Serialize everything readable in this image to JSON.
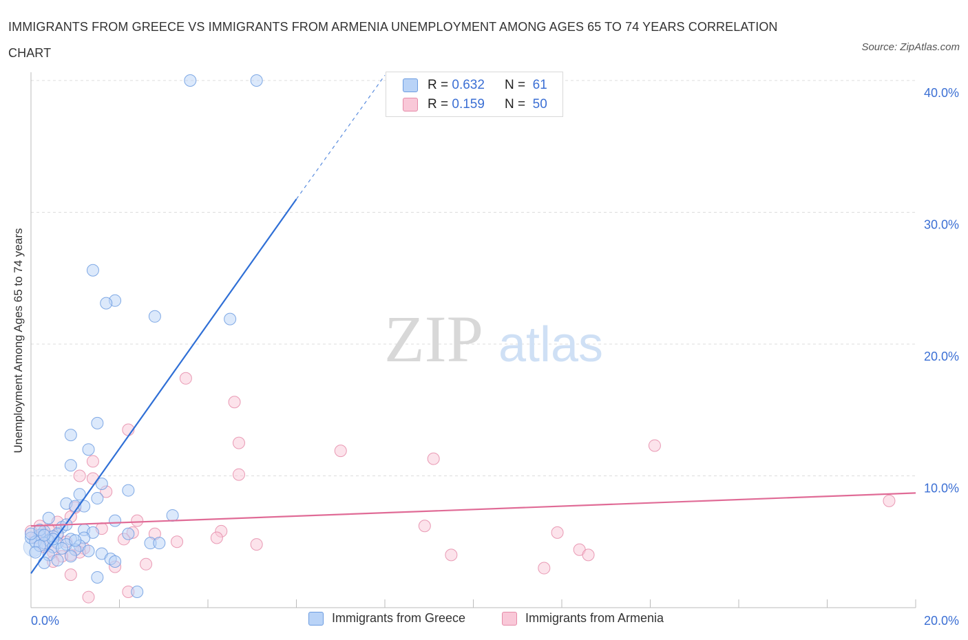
{
  "title": "IMMIGRANTS FROM GREECE VS IMMIGRANTS FROM ARMENIA UNEMPLOYMENT AMONG AGES 65 TO 74 YEARS CORRELATION CHART",
  "source": "Source: ZipAtlas.com",
  "watermark": {
    "zip": "ZIP",
    "atlas": "atlas"
  },
  "legend": {
    "rows": [
      {
        "r_label": "R =",
        "r_value": "0.632",
        "n_label": "N =",
        "n_value": "61"
      },
      {
        "r_label": "R =",
        "r_value": "0.159",
        "n_label": "N =",
        "n_value": "50"
      }
    ],
    "bottom": [
      "Immigrants from Greece",
      "Immigrants from Armenia"
    ]
  },
  "chart_data": {
    "type": "scatter",
    "title": "IMMIGRANTS FROM GREECE VS IMMIGRANTS FROM ARMENIA UNEMPLOYMENT AMONG AGES 65 TO 74 YEARS CORRELATION CHART",
    "xlabel": "",
    "ylabel": "Unemployment Among Ages 65 to 74 years",
    "xlim": [
      0,
      20
    ],
    "ylim": [
      0,
      40
    ],
    "x_tick_labels": [
      "0.0%",
      "20.0%"
    ],
    "y_tick_labels": [
      "10.0%",
      "20.0%",
      "30.0%",
      "40.0%"
    ],
    "y_ticks": [
      10,
      20,
      30,
      40
    ],
    "grid": true,
    "colors": {
      "greece": "#6b9be0",
      "greece_fill": "#b9d3f7",
      "greece_line": "#2f6fd6",
      "armenia": "#e58aa8",
      "armenia_fill": "#f9c8d8",
      "armenia_line": "#e06b96",
      "tick": "#3b6fd4"
    },
    "series": [
      {
        "name": "Immigrants from Greece",
        "R": 0.632,
        "N": 61,
        "trend": {
          "x0": 0.0,
          "y0": 2.6,
          "x1": 6.0,
          "y1": 31.0,
          "dash_to_x": 8.0,
          "dash_to_y": 40.4
        },
        "points": [
          [
            3.6,
            40.0
          ],
          [
            5.1,
            40.0
          ],
          [
            1.4,
            25.6
          ],
          [
            1.9,
            23.3
          ],
          [
            1.7,
            23.1
          ],
          [
            2.8,
            22.1
          ],
          [
            4.5,
            21.9
          ],
          [
            1.5,
            14.0
          ],
          [
            0.9,
            13.1
          ],
          [
            1.3,
            12.0
          ],
          [
            0.9,
            10.8
          ],
          [
            1.6,
            9.4
          ],
          [
            2.2,
            8.9
          ],
          [
            1.1,
            8.6
          ],
          [
            1.5,
            8.3
          ],
          [
            0.8,
            7.9
          ],
          [
            1.0,
            7.7
          ],
          [
            1.2,
            7.7
          ],
          [
            3.2,
            7.0
          ],
          [
            0.4,
            6.8
          ],
          [
            1.9,
            6.6
          ],
          [
            0.7,
            6.1
          ],
          [
            1.2,
            5.9
          ],
          [
            0.3,
            5.8
          ],
          [
            1.4,
            5.7
          ],
          [
            0.6,
            5.6
          ],
          [
            2.2,
            5.6
          ],
          [
            0.2,
            5.5
          ],
          [
            0.5,
            5.4
          ],
          [
            0.0,
            5.3
          ],
          [
            1.2,
            5.3
          ],
          [
            0.9,
            5.2
          ],
          [
            0.4,
            5.1
          ],
          [
            0.1,
            5.0
          ],
          [
            0.6,
            4.9
          ],
          [
            0.3,
            4.9
          ],
          [
            2.7,
            4.9
          ],
          [
            2.9,
            4.9
          ],
          [
            0.8,
            4.8
          ],
          [
            1.1,
            4.7
          ],
          [
            0.2,
            4.7
          ],
          [
            0.5,
            4.6
          ],
          [
            0.7,
            4.5
          ],
          [
            1.0,
            4.4
          ],
          [
            1.3,
            4.3
          ],
          [
            1.6,
            4.1
          ],
          [
            0.1,
            4.2
          ],
          [
            0.4,
            4.0
          ],
          [
            0.9,
            3.9
          ],
          [
            1.8,
            3.7
          ],
          [
            0.6,
            3.6
          ],
          [
            1.9,
            3.5
          ],
          [
            0.3,
            3.4
          ],
          [
            1.5,
            2.3
          ],
          [
            2.4,
            1.2
          ],
          [
            0.0,
            5.6
          ],
          [
            0.2,
            5.9
          ],
          [
            0.8,
            6.3
          ],
          [
            1.0,
            5.1
          ],
          [
            0.5,
            5.2
          ],
          [
            0.3,
            5.5
          ]
        ]
      },
      {
        "name": "Immigrants from Armenia",
        "R": 0.159,
        "N": 50,
        "trend": {
          "x0": 0.0,
          "y0": 6.2,
          "x1": 20.0,
          "y1": 8.7
        },
        "points": [
          [
            3.5,
            17.4
          ],
          [
            4.6,
            15.6
          ],
          [
            2.2,
            13.5
          ],
          [
            4.7,
            12.5
          ],
          [
            7.0,
            11.9
          ],
          [
            9.1,
            11.3
          ],
          [
            14.1,
            12.3
          ],
          [
            4.7,
            10.1
          ],
          [
            1.4,
            11.1
          ],
          [
            1.1,
            10.0
          ],
          [
            1.4,
            9.8
          ],
          [
            1.7,
            8.8
          ],
          [
            19.4,
            8.1
          ],
          [
            1.0,
            7.6
          ],
          [
            0.9,
            6.9
          ],
          [
            2.4,
            6.6
          ],
          [
            8.9,
            6.2
          ],
          [
            4.3,
            5.8
          ],
          [
            11.9,
            5.7
          ],
          [
            2.3,
            5.7
          ],
          [
            2.8,
            5.6
          ],
          [
            0.3,
            5.6
          ],
          [
            0.6,
            5.5
          ],
          [
            4.2,
            5.3
          ],
          [
            2.1,
            5.2
          ],
          [
            3.3,
            5.0
          ],
          [
            0.8,
            5.0
          ],
          [
            5.1,
            4.8
          ],
          [
            1.2,
            4.5
          ],
          [
            12.4,
            4.4
          ],
          [
            0.5,
            4.2
          ],
          [
            1.1,
            4.2
          ],
          [
            0.9,
            4.0
          ],
          [
            9.5,
            4.0
          ],
          [
            12.6,
            4.0
          ],
          [
            0.7,
            3.9
          ],
          [
            0.5,
            3.5
          ],
          [
            2.6,
            3.3
          ],
          [
            1.9,
            3.1
          ],
          [
            11.6,
            3.0
          ],
          [
            0.9,
            2.5
          ],
          [
            2.2,
            1.2
          ],
          [
            1.3,
            0.8
          ],
          [
            0.2,
            6.2
          ],
          [
            0.4,
            5.9
          ],
          [
            0.1,
            5.3
          ],
          [
            0.6,
            6.5
          ],
          [
            1.6,
            6.0
          ],
          [
            0.3,
            4.6
          ],
          [
            0.0,
            5.8
          ]
        ]
      }
    ]
  }
}
